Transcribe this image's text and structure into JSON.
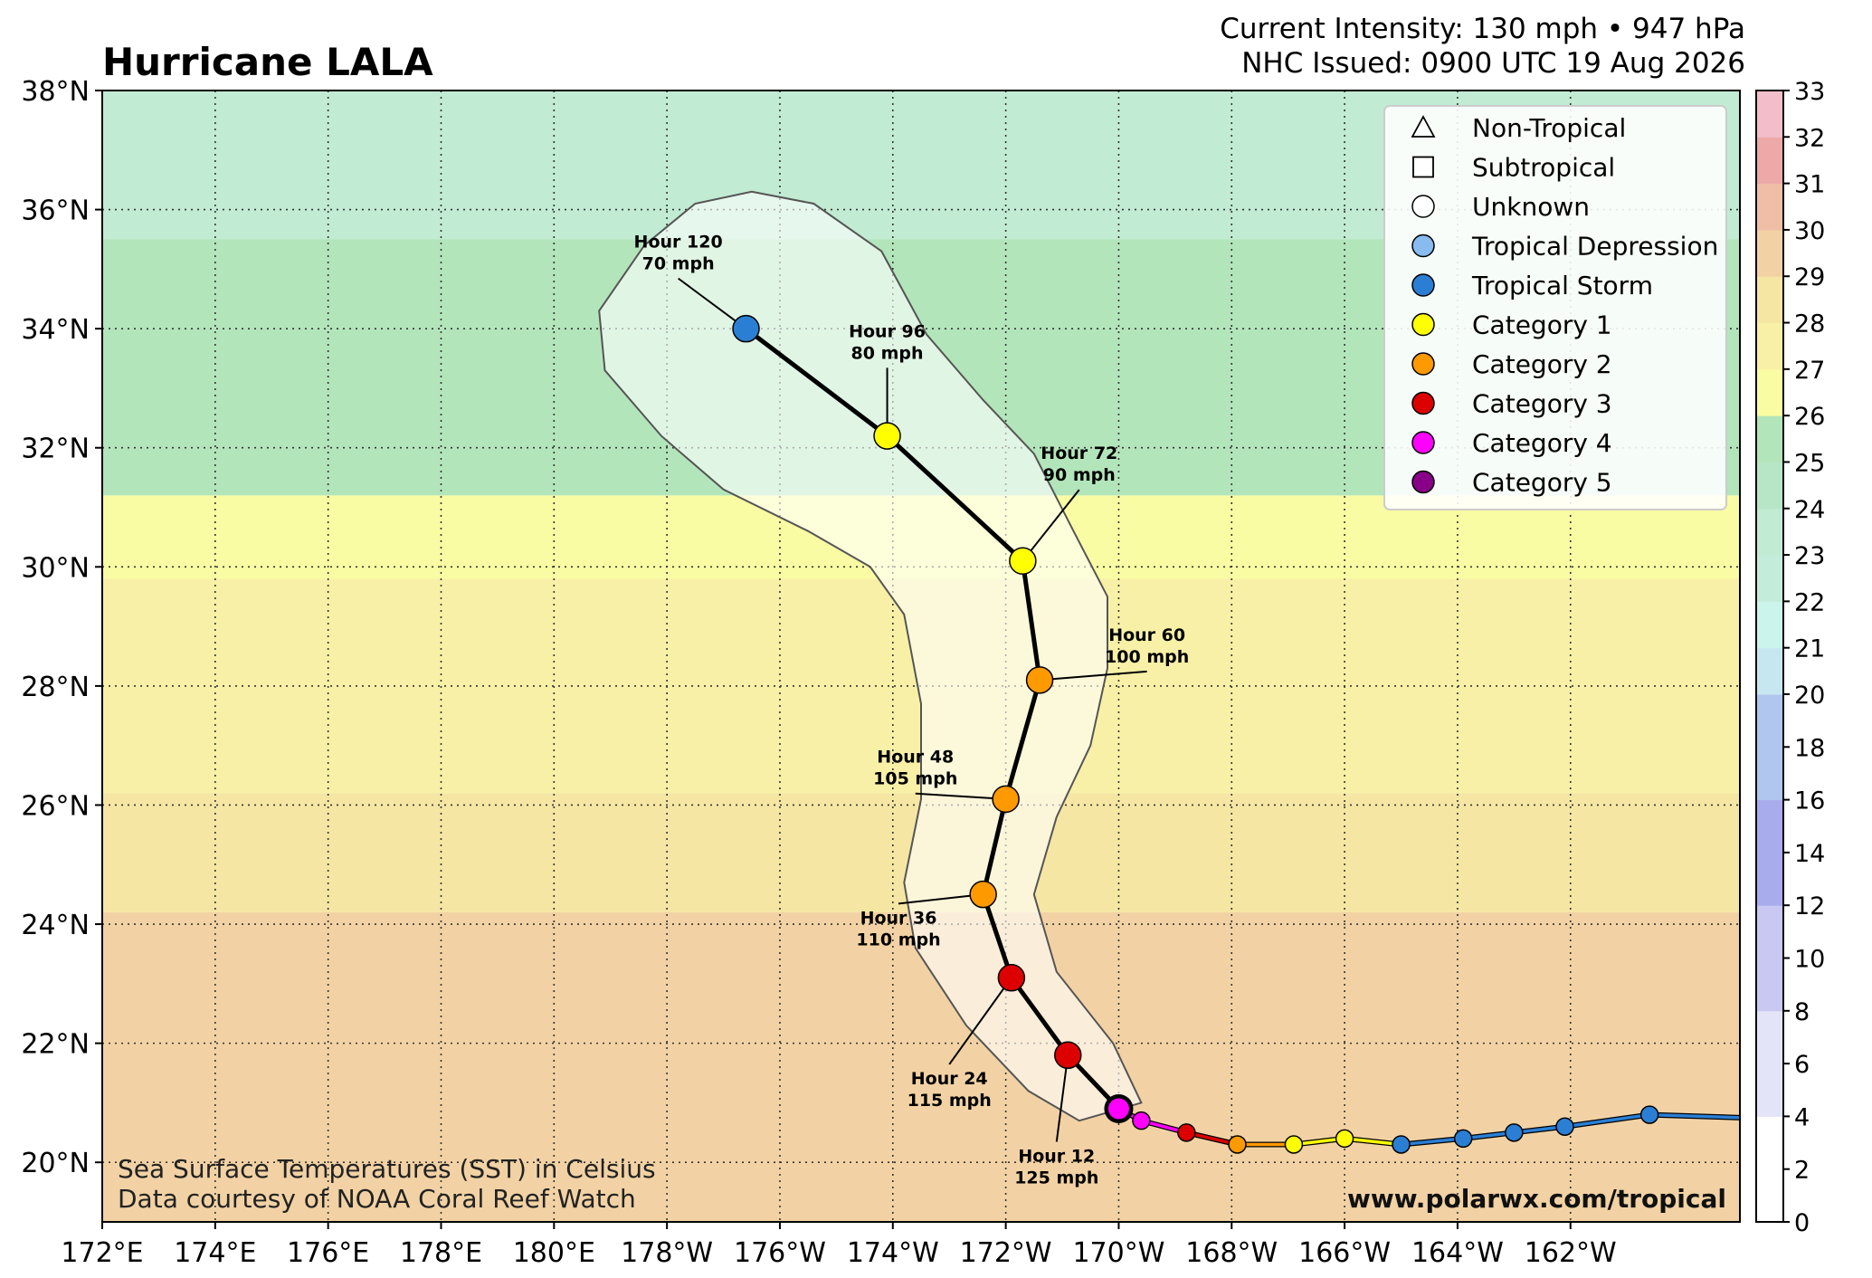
{
  "title": "Hurricane LALA",
  "header": {
    "intensity": "Current Intensity: 130 mph • 947 hPa",
    "issued": "NHC Issued: 0900 UTC 19 Aug 2026"
  },
  "map": {
    "lon_range": [
      172,
      201
    ],
    "lat_range": [
      19,
      38
    ],
    "lon_ticks": [
      {
        "v": 172,
        "label": "172°E"
      },
      {
        "v": 174,
        "label": "174°E"
      },
      {
        "v": 176,
        "label": "176°E"
      },
      {
        "v": 178,
        "label": "178°E"
      },
      {
        "v": 180,
        "label": "180°E"
      },
      {
        "v": 182,
        "label": "178°W"
      },
      {
        "v": 184,
        "label": "176°W"
      },
      {
        "v": 186,
        "label": "174°W"
      },
      {
        "v": 188,
        "label": "172°W"
      },
      {
        "v": 190,
        "label": "170°W"
      },
      {
        "v": 192,
        "label": "168°W"
      },
      {
        "v": 194,
        "label": "166°W"
      },
      {
        "v": 196,
        "label": "164°W"
      },
      {
        "v": 198,
        "label": "162°W"
      }
    ],
    "lat_ticks": [
      {
        "v": 20,
        "label": "20°N"
      },
      {
        "v": 22,
        "label": "22°N"
      },
      {
        "v": 24,
        "label": "24°N"
      },
      {
        "v": 26,
        "label": "26°N"
      },
      {
        "v": 28,
        "label": "28°N"
      },
      {
        "v": 30,
        "label": "30°N"
      },
      {
        "v": 32,
        "label": "32°N"
      },
      {
        "v": 34,
        "label": "34°N"
      },
      {
        "v": 36,
        "label": "36°N"
      },
      {
        "v": 38,
        "label": "38°N"
      }
    ],
    "grid": true
  },
  "colors": {
    "ts": "#2a7fd4",
    "cat1": "#ffff00",
    "cat2": "#ff9900",
    "cat3": "#dd0000",
    "cat4": "#ff00ff",
    "cat5": "#880088",
    "td": "#88bbee",
    "cone_fill": "#ffffff",
    "cone_edge": "#555555"
  },
  "past_track": [
    {
      "lon": 201.0,
      "lat": 20.75,
      "cat": "ts",
      "show": false
    },
    {
      "lon": 199.4,
      "lat": 20.8,
      "cat": "ts",
      "show": true
    },
    {
      "lon": 197.9,
      "lat": 20.6,
      "cat": "ts",
      "show": true
    },
    {
      "lon": 197.0,
      "lat": 20.5,
      "cat": "ts",
      "show": true
    },
    {
      "lon": 196.1,
      "lat": 20.4,
      "cat": "ts",
      "show": true
    },
    {
      "lon": 195.0,
      "lat": 20.3,
      "cat": "ts",
      "show": true
    },
    {
      "lon": 194.0,
      "lat": 20.4,
      "cat": "cat1",
      "show": true
    },
    {
      "lon": 193.1,
      "lat": 20.3,
      "cat": "cat1",
      "show": true
    },
    {
      "lon": 192.1,
      "lat": 20.3,
      "cat": "cat2",
      "show": true
    },
    {
      "lon": 191.2,
      "lat": 20.5,
      "cat": "cat3",
      "show": true
    },
    {
      "lon": 190.4,
      "lat": 20.7,
      "cat": "cat4",
      "show": true
    },
    {
      "lon": 190.0,
      "lat": 20.9,
      "cat": "cat4",
      "show": false
    }
  ],
  "current_position": {
    "lon": 190.0,
    "lat": 20.9,
    "cat": "cat4"
  },
  "forecast_points": [
    {
      "lon": 189.1,
      "lat": 21.8,
      "cat": "cat3",
      "label1": "Hour 12",
      "label2": "125 mph",
      "lx": 188.9,
      "ly": 19.95
    },
    {
      "lon": 188.1,
      "lat": 23.1,
      "cat": "cat3",
      "label1": "Hour 24",
      "label2": "115 mph",
      "lx": 187.0,
      "ly": 21.25
    },
    {
      "lon": 187.6,
      "lat": 24.5,
      "cat": "cat2",
      "label1": "Hour 36",
      "label2": "110 mph",
      "lx": 186.1,
      "ly": 23.95
    },
    {
      "lon": 188.0,
      "lat": 26.1,
      "cat": "cat2",
      "label1": "Hour 48",
      "label2": "105 mph",
      "lx": 186.4,
      "ly": 26.65
    },
    {
      "lon": 188.6,
      "lat": 28.1,
      "cat": "cat2",
      "label1": "Hour 60",
      "label2": "100 mph",
      "lx": 190.5,
      "ly": 28.7
    },
    {
      "lon": 188.3,
      "lat": 30.1,
      "cat": "cat1",
      "label1": "Hour 72",
      "label2": "90 mph",
      "lx": 189.3,
      "ly": 31.75
    },
    {
      "lon": 185.9,
      "lat": 32.2,
      "cat": "cat1",
      "label1": "Hour 96",
      "label2": "80 mph",
      "lx": 185.9,
      "ly": 33.8
    },
    {
      "lon": 183.4,
      "lat": 34.0,
      "cat": "ts",
      "label1": "Hour 120",
      "label2": "70 mph",
      "lx": 182.2,
      "ly": 35.3
    }
  ],
  "cone": [
    [
      189.3,
      20.7
    ],
    [
      190.4,
      21.0
    ],
    [
      189.9,
      22.0
    ],
    [
      188.9,
      23.2
    ],
    [
      188.5,
      24.5
    ],
    [
      188.9,
      25.8
    ],
    [
      189.5,
      27.0
    ],
    [
      189.8,
      28.3
    ],
    [
      189.8,
      29.5
    ],
    [
      189.2,
      30.6
    ],
    [
      188.5,
      31.9
    ],
    [
      187.6,
      32.8
    ],
    [
      186.6,
      33.9
    ],
    [
      185.8,
      35.3
    ],
    [
      184.6,
      36.1
    ],
    [
      183.5,
      36.3
    ],
    [
      182.5,
      36.1
    ],
    [
      181.6,
      35.4
    ],
    [
      180.8,
      34.3
    ],
    [
      180.9,
      33.3
    ],
    [
      181.9,
      32.2
    ],
    [
      183.0,
      31.3
    ],
    [
      184.5,
      30.6
    ],
    [
      185.6,
      30.0
    ],
    [
      186.2,
      29.2
    ],
    [
      186.5,
      27.7
    ],
    [
      186.5,
      26.1
    ],
    [
      186.2,
      24.7
    ],
    [
      186.4,
      23.6
    ],
    [
      187.3,
      22.3
    ],
    [
      188.4,
      21.2
    ],
    [
      189.3,
      20.7
    ]
  ],
  "sst_bands": [
    {
      "lat": 24.2,
      "value": 29
    },
    {
      "lat": 26.2,
      "value": 28
    },
    {
      "lat": 29.8,
      "value": 27
    },
    {
      "lat": 31.2,
      "value": 26
    },
    {
      "lat": 35.5,
      "value": 25
    },
    {
      "lat": 38.0,
      "value": 23
    }
  ],
  "legend": [
    {
      "shape": "triangle",
      "label": "Non-Tropical"
    },
    {
      "shape": "square",
      "label": "Subtropical"
    },
    {
      "shape": "circle",
      "color": "#ffffff",
      "label": "Unknown"
    },
    {
      "shape": "circle",
      "color": "#88bbee",
      "label": "Tropical Depression"
    },
    {
      "shape": "circle",
      "color": "#2a7fd4",
      "label": "Tropical Storm"
    },
    {
      "shape": "circle",
      "color": "#ffff00",
      "label": "Category 1"
    },
    {
      "shape": "circle",
      "color": "#ff9900",
      "label": "Category 2"
    },
    {
      "shape": "circle",
      "color": "#dd0000",
      "label": "Category 3"
    },
    {
      "shape": "circle",
      "color": "#ff00ff",
      "label": "Category 4"
    },
    {
      "shape": "circle",
      "color": "#880088",
      "label": "Category 5"
    }
  ],
  "colorbar": {
    "min": 0,
    "max": 33,
    "labels": [
      0,
      2,
      4,
      6,
      8,
      10,
      12,
      14,
      16,
      18,
      20,
      21,
      22,
      23,
      24,
      25,
      26,
      27,
      28,
      29,
      30,
      31,
      32,
      33
    ],
    "stops": [
      {
        "v": 0,
        "color": "#ffffff"
      },
      {
        "v": 4,
        "color": "#e4e4f9"
      },
      {
        "v": 8,
        "color": "#c8c8f3"
      },
      {
        "v": 12,
        "color": "#a8abec"
      },
      {
        "v": 16,
        "color": "#b1c6ef"
      },
      {
        "v": 20,
        "color": "#c6e7f0"
      },
      {
        "v": 21,
        "color": "#caf4ec"
      },
      {
        "v": 22,
        "color": "#c3ecdb"
      },
      {
        "v": 23,
        "color": "#c1ebd3"
      },
      {
        "v": 24,
        "color": "#b7e6c6"
      },
      {
        "v": 25,
        "color": "#b3e5bb"
      },
      {
        "v": 26,
        "color": "#f9fca3"
      },
      {
        "v": 27,
        "color": "#f8f0a6"
      },
      {
        "v": 28,
        "color": "#f5e6a3"
      },
      {
        "v": 29,
        "color": "#f2d2a4"
      },
      {
        "v": 30,
        "color": "#f0bea7"
      },
      {
        "v": 31,
        "color": "#eca9a8"
      },
      {
        "v": 32,
        "color": "#f2bec9"
      },
      {
        "v": 33,
        "color": "#fbd8f0"
      }
    ]
  },
  "footer": {
    "sst_line1": "Sea Surface Temperatures (SST) in Celsius",
    "sst_line2": "Data courtesy of NOAA Coral Reef Watch",
    "website": "www.polarwx.com/tropical"
  }
}
